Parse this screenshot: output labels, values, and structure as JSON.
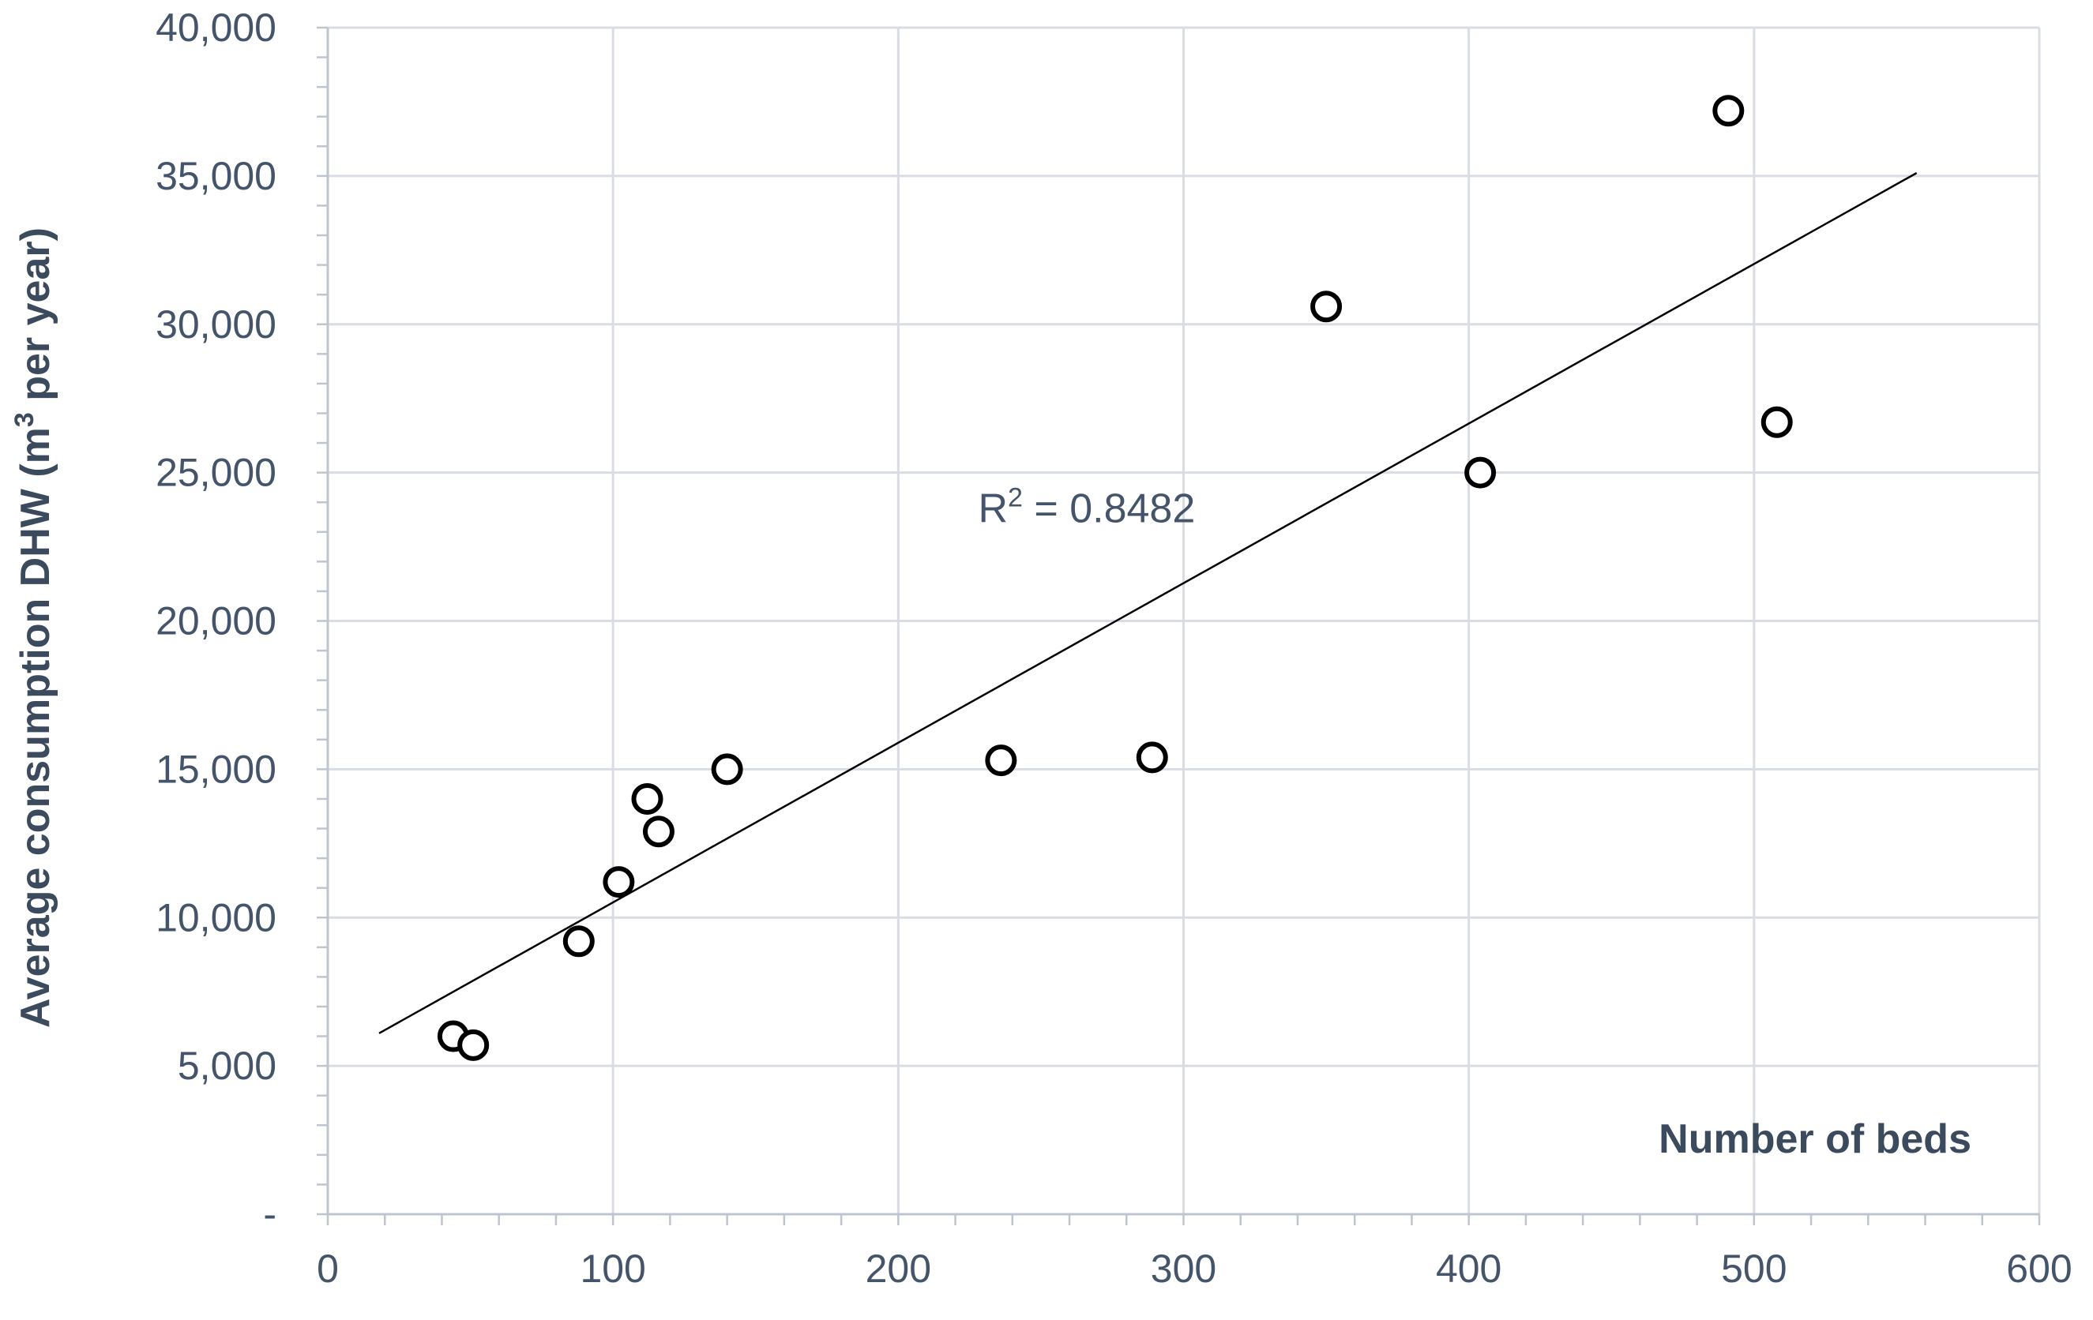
{
  "chart_data": {
    "type": "scatter",
    "title": "",
    "xlabel": "Number of beds",
    "ylabel_main": "Average consumption DHW (m",
    "ylabel_sup": "3",
    "ylabel_end": " per year)",
    "xlim": [
      0,
      600
    ],
    "ylim": [
      0,
      40000
    ],
    "x_ticks": [
      0,
      100,
      200,
      300,
      400,
      500,
      600
    ],
    "x_tick_labels": [
      "0",
      "100",
      "200",
      "300",
      "400",
      "500",
      "600"
    ],
    "y_ticks": [
      0,
      5000,
      10000,
      15000,
      20000,
      25000,
      30000,
      35000,
      40000
    ],
    "y_tick_labels": [
      "-",
      "5,000",
      "10,000",
      "15,000",
      "20,000",
      "25,000",
      "30,000",
      "35,000",
      "40,000"
    ],
    "grid": true,
    "legend": "none",
    "series": [
      {
        "points": [
          {
            "x": 44,
            "y": 6000
          },
          {
            "x": 51,
            "y": 5700
          },
          {
            "x": 88,
            "y": 9200
          },
          {
            "x": 102,
            "y": 11200
          },
          {
            "x": 112,
            "y": 14000
          },
          {
            "x": 116,
            "y": 12900
          },
          {
            "x": 140,
            "y": 15000
          },
          {
            "x": 236,
            "y": 15300
          },
          {
            "x": 289,
            "y": 15400
          },
          {
            "x": 350,
            "y": 30600
          },
          {
            "x": 404,
            "y": 25000
          },
          {
            "x": 491,
            "y": 37200
          },
          {
            "x": 508,
            "y": 26700
          }
        ]
      }
    ],
    "trendline": {
      "type": "linear",
      "x_start": 18,
      "y_start": 6100,
      "x_end": 557,
      "y_end": 35100
    },
    "annotation": {
      "text_prefix": "R",
      "text_sup": "2",
      "text_suffix": " = 0.8482",
      "x": 228,
      "y": 23800
    }
  }
}
